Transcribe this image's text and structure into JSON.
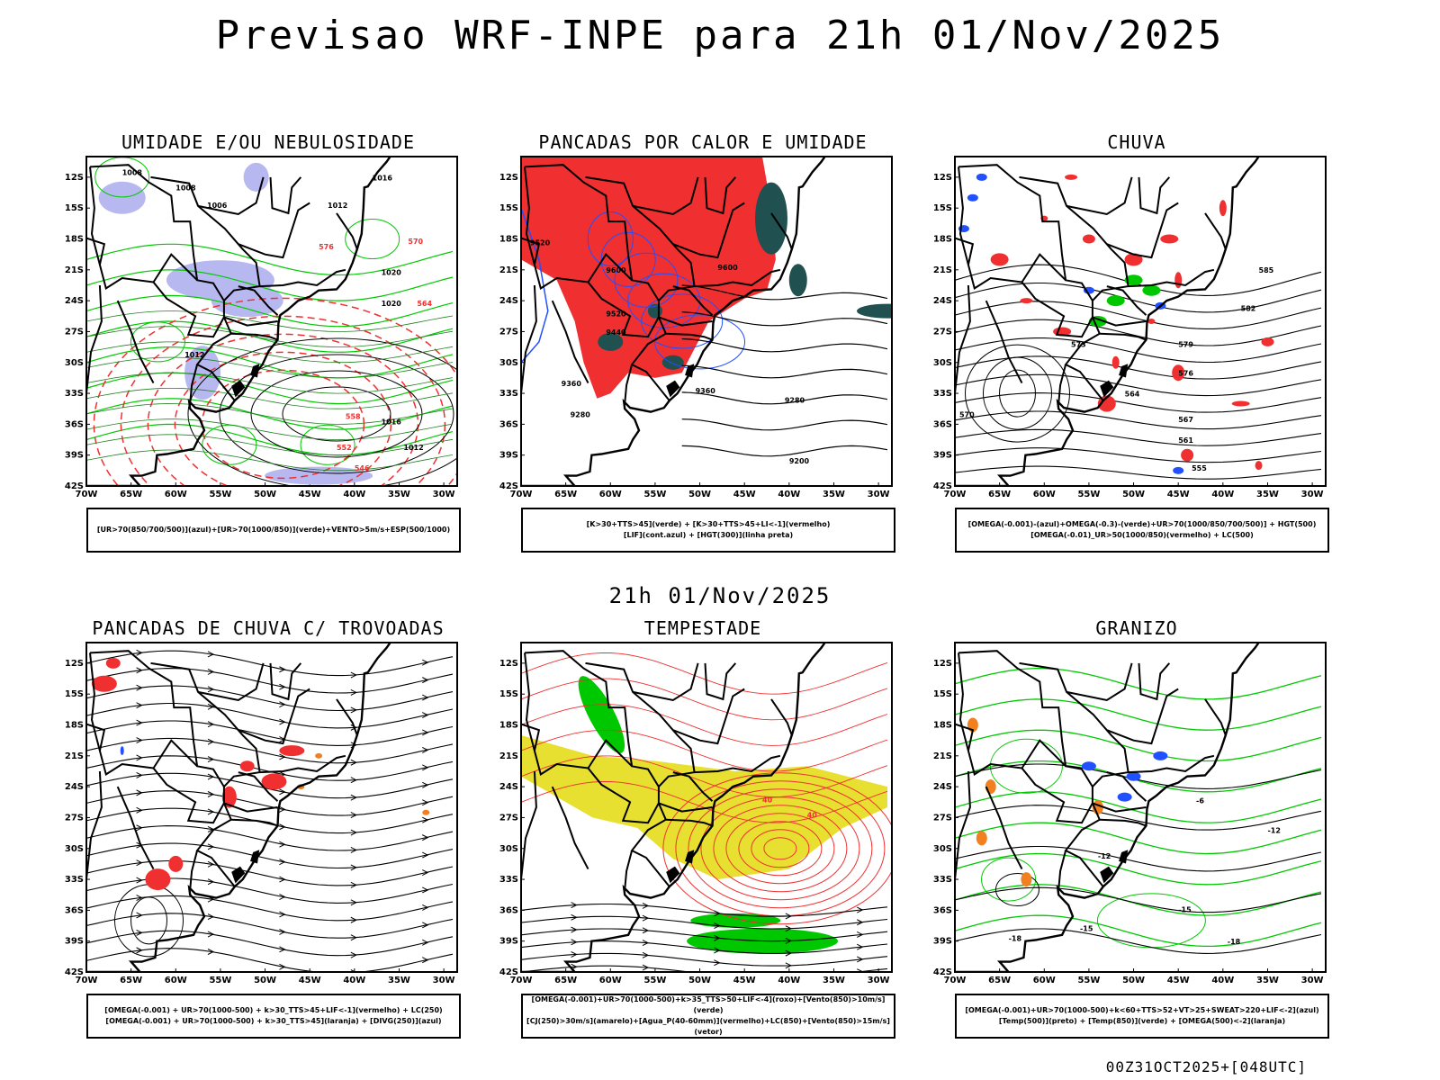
{
  "header": {
    "title": "Previsao WRF-INPE  para 21h 01/Nov/2025",
    "mid_title": "21h 01/Nov/2025",
    "footer_stamp": "00Z31OCT2025+[048UTC]"
  },
  "axes": {
    "lat_labels": [
      "12S",
      "15S",
      "18S",
      "21S",
      "24S",
      "27S",
      "30S",
      "33S",
      "36S",
      "39S",
      "42S"
    ],
    "lon_labels": [
      "70W",
      "65W",
      "60W",
      "55W",
      "50W",
      "45W",
      "40W",
      "35W",
      "30W"
    ]
  },
  "panels": [
    {
      "id": "umidade",
      "title": "UMIDADE E/OU NEBULOSIDADE",
      "legend": [
        "[UR>70(850/700/500)](azul)+[UR>70(1000/850)](verde)+VENTO>5m/s+ESP(500/1000)"
      ],
      "contour_labels": [
        "1008",
        "1008",
        "1006",
        "1016",
        "1012",
        "1020",
        "1020",
        "1016",
        "1012",
        "1012",
        "576",
        "570",
        "564",
        "558",
        "552",
        "546"
      ]
    },
    {
      "id": "pancadas_calor",
      "title": "PANCADAS POR CALOR E UMIDADE",
      "legend": [
        "[K>30+TTS>45](verde) + [K>30+TTS>45+LI<-1](vermelho)",
        "[LIF](cont.azul) + [HGT(300)](linha preta)"
      ],
      "contour_labels": [
        "9600",
        "9600",
        "9520",
        "9520",
        "9440",
        "9360",
        "9360",
        "9280",
        "9280",
        "9200"
      ]
    },
    {
      "id": "chuva",
      "title": "CHUVA",
      "legend": [
        "[OMEGA(-0.001)-(azul)+OMEGA(-0.3)-(verde)+UR>70(1000/850/700/500)] + HGT(500)",
        "[OMEGA(-0.01)_UR>50(1000/850)(vermelho) + LC(500)"
      ],
      "contour_labels": [
        "585",
        "582",
        "579",
        "576",
        "573",
        "570",
        "567",
        "564",
        "561",
        "555"
      ]
    },
    {
      "id": "pancadas_trovoadas",
      "title": "PANCADAS DE CHUVA C/ TROVOADAS",
      "legend": [
        "[OMEGA(-0.001) + UR>70(1000-500) + k>30_TTS>45+LIF<-1](vermelho) + LC(250)",
        "[OMEGA(-0.001) + UR>70(1000-500) + k>30_TTS>45](laranja) + [DIVG(250)](azul)"
      ],
      "contour_labels": []
    },
    {
      "id": "tempestade",
      "title": "TEMPESTADE",
      "legend": [
        "[OMEGA(-0.001)+UR>70(1000-500)+k>35_TTS>50+LIF<-4](roxo)+[Vento(850)>10m/s](verde)",
        "[CJ(250)>30m/s](amarelo)+[Agua_P(40-60mm)](vermelho)+LC(850)+[Vento(850)>15m/s](vetor)"
      ],
      "contour_labels": [
        "40",
        "40"
      ]
    },
    {
      "id": "granizo",
      "title": "GRANIZO",
      "legend": [
        "[OMEGA(-0.001)+UR>70(1000-500)+k<60+TTS>52+VT>25+SWEAT>220+LIF<-2](azul)",
        "[Temp(500)](preto) + [Temp(850)](verde) + [OMEGA(500)<-2](laranja)"
      ],
      "contour_labels": [
        "-6",
        "-12",
        "-12",
        "-15",
        "-15",
        "-18",
        "-18"
      ]
    }
  ],
  "colors": {
    "red": "#f03030",
    "green": "#00c800",
    "blue": "#2050ff",
    "lavender": "#b8b8f0",
    "yellow": "#e8e030",
    "dark_teal": "#205050",
    "orange": "#f08020",
    "black": "#000000"
  }
}
